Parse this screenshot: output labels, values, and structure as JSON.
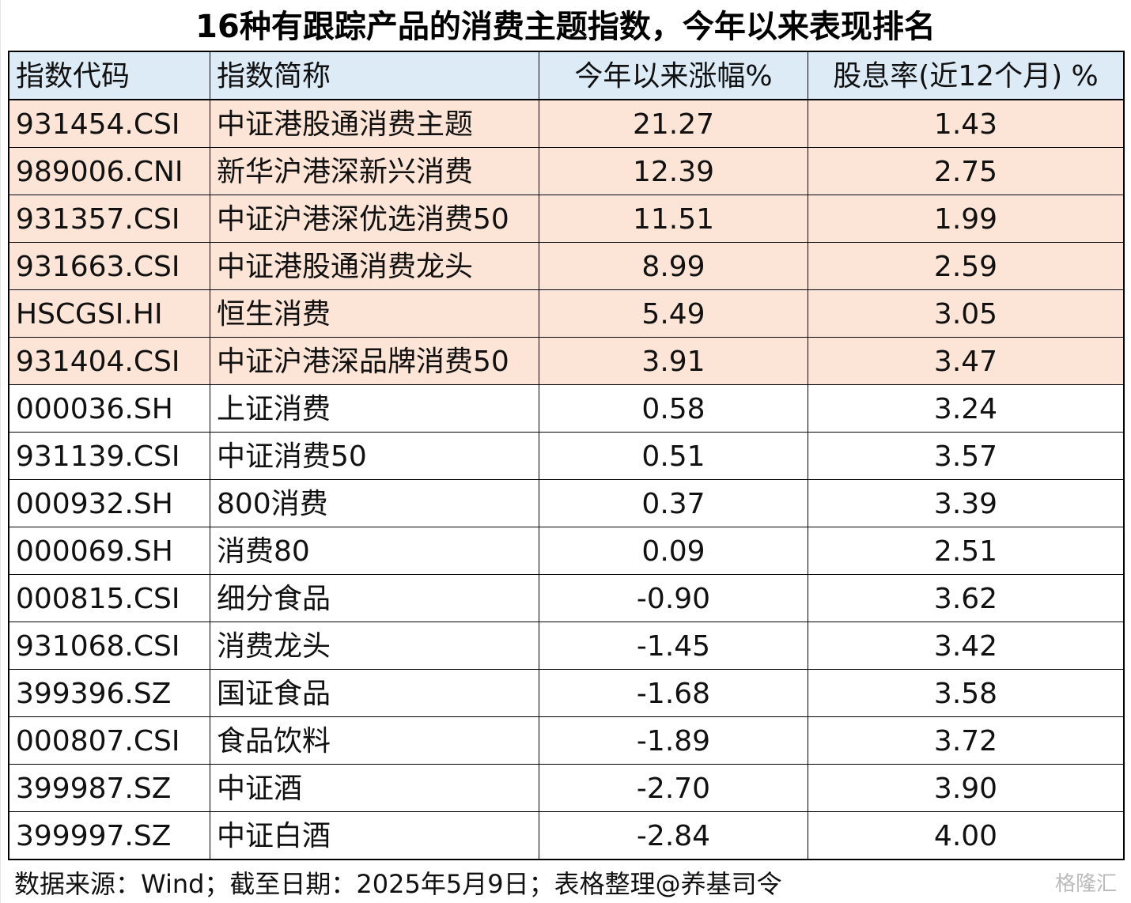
{
  "title": "16种有跟踪产品的消费主题指数，今年以来表现排名",
  "table": {
    "header": [
      "指数代码",
      "指数简称",
      "今年以来涨幅%",
      "股息率(近12个月) %"
    ],
    "rows": [
      [
        "931454.CSI",
        "中证港股通消费主题",
        "21.27",
        "1.43"
      ],
      [
        "989006.CNI",
        "新华沪港深新兴消费",
        "12.39",
        "2.75"
      ],
      [
        "931357.CSI",
        "中证沪港深优选消费50",
        "11.51",
        "1.99"
      ],
      [
        "931663.CSI",
        "中证港股通消费龙头",
        "8.99",
        "2.59"
      ],
      [
        "HSCGSI.HI",
        "恒生消费",
        "5.49",
        "3.05"
      ],
      [
        "931404.CSI",
        "中证沪港深品牌消费50",
        "3.91",
        "3.47"
      ],
      [
        "000036.SH",
        "上证消费",
        "0.58",
        "3.24"
      ],
      [
        "931139.CSI",
        "中证消费50",
        "0.51",
        "3.57"
      ],
      [
        "000932.SH",
        "800消费",
        "0.37",
        "3.39"
      ],
      [
        "000069.SH",
        "消费80",
        "0.09",
        "2.51"
      ],
      [
        "000815.CSI",
        "细分食品",
        "-0.90",
        "3.62"
      ],
      [
        "931068.CSI",
        "消费龙头",
        "-1.45",
        "3.42"
      ],
      [
        "399396.SZ",
        "国证食品",
        "-1.68",
        "3.58"
      ],
      [
        "000807.CSI",
        "食品饮料",
        "-1.89",
        "3.72"
      ],
      [
        "399987.SZ",
        "中证酒",
        "-2.70",
        "3.90"
      ],
      [
        "399997.SZ",
        "中证白酒",
        "-2.84",
        "4.00"
      ]
    ]
  },
  "footer": "数据来源：Wind；截至日期：2025年5月9日；表格整理@养基司令",
  "watermark": "格隆汇"
}
